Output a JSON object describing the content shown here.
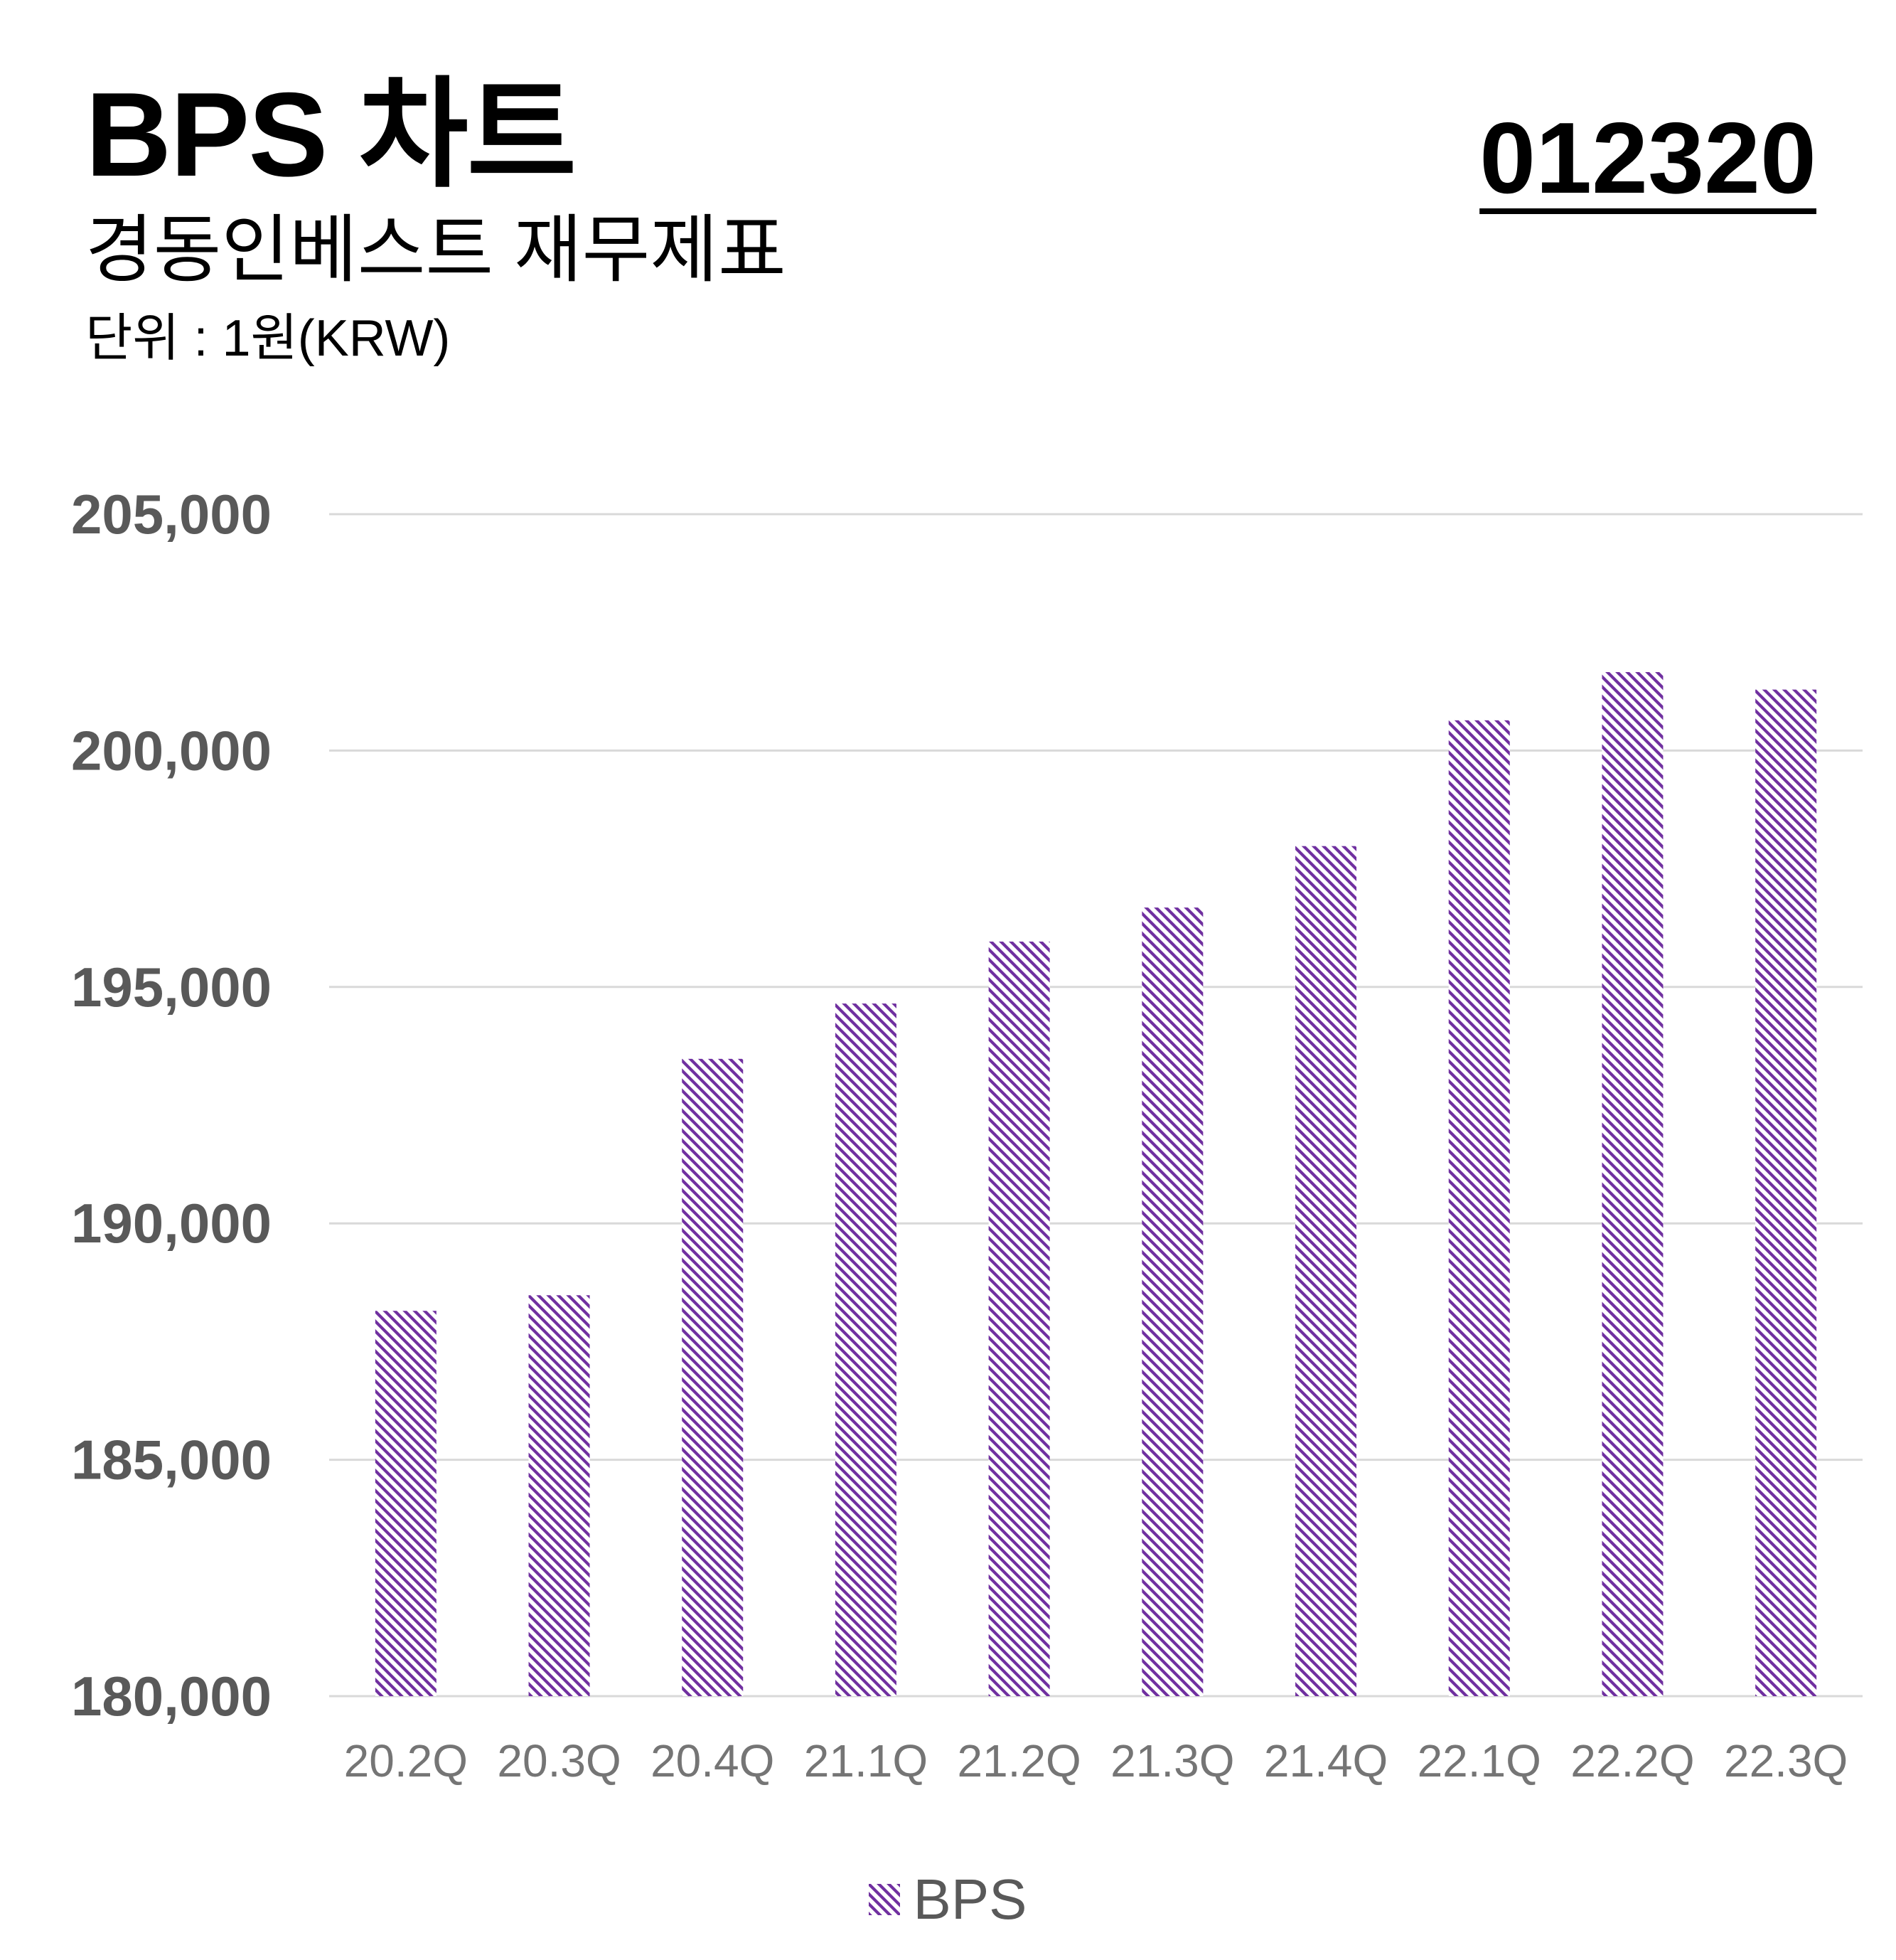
{
  "header": {
    "title": "BPS 차트",
    "subtitle": "경동인베스트 재무제표",
    "unit": "단위 : 1원(KRW)",
    "code": "012320"
  },
  "colors": {
    "bar_stripe": "#7030a0",
    "grid": "#d9d9d9",
    "tick_text": "#595959",
    "axis_label_text": "#757575"
  },
  "legend": {
    "label": "BPS"
  },
  "chart_data": {
    "type": "bar",
    "title": "BPS 차트",
    "categories": [
      "20.2Q",
      "20.3Q",
      "20.4Q",
      "21.1Q",
      "21.2Q",
      "21.3Q",
      "21.4Q",
      "22.1Q",
      "22.2Q",
      "22.3Q"
    ],
    "series": [
      {
        "name": "BPS",
        "values": [
          188150,
          188480,
          193480,
          194650,
          195960,
          196680,
          197980,
          200640,
          201660,
          201290
        ]
      }
    ],
    "ylim": [
      180000,
      205000
    ],
    "yticks": [
      180000,
      185000,
      190000,
      195000,
      200000,
      205000
    ],
    "ytick_labels": [
      "180,000",
      "185,000",
      "190,000",
      "195,000",
      "200,000",
      "205,000"
    ],
    "grid": true,
    "legend_position": "bottom-center",
    "fill": "diagonal-stripes"
  }
}
